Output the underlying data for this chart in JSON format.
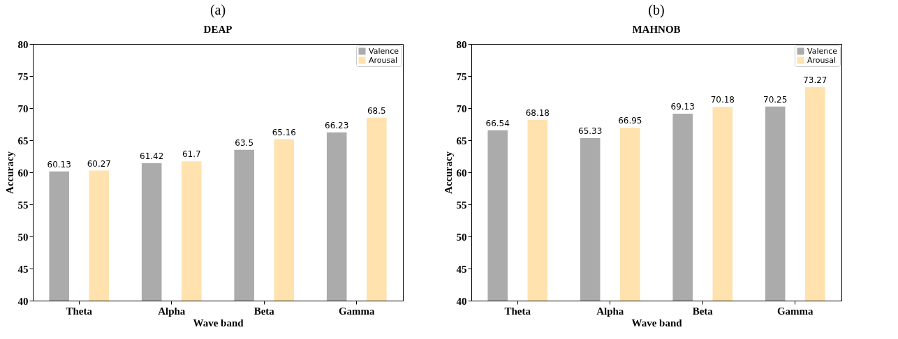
{
  "chart_data": [
    {
      "type": "bar",
      "title": "(a)",
      "subtitle": "DEAP",
      "xlabel": "Wave band",
      "ylabel": "Accuracy",
      "categories": [
        "Theta",
        "Alpha",
        "Beta",
        "Gamma"
      ],
      "series": [
        {
          "name": "Valence",
          "color": "#ababab",
          "values": [
            60.13,
            61.42,
            63.5,
            66.23
          ]
        },
        {
          "name": "Arousal",
          "color": "#ffe2ae",
          "values": [
            60.27,
            61.7,
            65.16,
            68.5
          ]
        }
      ],
      "ylim": [
        40,
        80
      ],
      "yticks": [
        40,
        45,
        50,
        55,
        60,
        65,
        70,
        75,
        80
      ],
      "data_labels": true,
      "legend": "top right",
      "grid": false
    },
    {
      "type": "bar",
      "title": "(b)",
      "subtitle": "MAHNOB",
      "xlabel": "Wave band",
      "ylabel": "Accuracy",
      "categories": [
        "Theta",
        "Alpha",
        "Beta",
        "Gamma"
      ],
      "series": [
        {
          "name": "Valence",
          "color": "#ababab",
          "values": [
            66.54,
            65.33,
            69.13,
            70.25
          ]
        },
        {
          "name": "Arousal",
          "color": "#ffe2ae",
          "values": [
            68.18,
            66.95,
            70.18,
            73.27
          ]
        }
      ],
      "ylim": [
        40,
        80
      ],
      "yticks": [
        40,
        45,
        50,
        55,
        60,
        65,
        70,
        75,
        80
      ],
      "data_labels": true,
      "legend": "top right",
      "grid": false
    }
  ]
}
